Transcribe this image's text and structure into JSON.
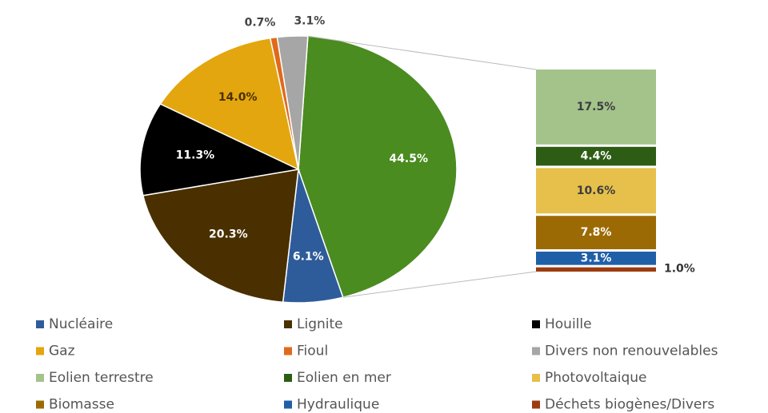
{
  "chart_data": {
    "type": "pie-of-bar",
    "categories": [
      "Nucléaire",
      "Lignite",
      "Houille",
      "Gaz",
      "Fioul",
      "Divers non renouvelables",
      null
    ],
    "values": [
      6.1,
      20.3,
      11.3,
      14.0,
      0.7,
      3.1,
      44.5
    ],
    "value_labels": [
      "6.1%",
      "20.3%",
      "11.3%",
      "14.0%",
      "0.7%",
      "3.1%",
      "44.5%"
    ],
    "colors": [
      "#2e5c9a",
      "#4a3000",
      "#000000",
      "#e3a60e",
      "#e06a1b",
      "#a6a6a6",
      "#4a8c1f"
    ],
    "bar_categories": [
      "Eolien terrestre",
      "Eolien en mer",
      "Photovoltaique",
      "Biomasse",
      "Hydraulique",
      "Déchets biogènes/Divers"
    ],
    "bar_values": [
      17.5,
      4.4,
      10.6,
      7.8,
      3.1,
      1.0
    ],
    "bar_value_labels": [
      "17.5%",
      "4.4%",
      "10.6%",
      "7.8%",
      "3.1%",
      "1.0%"
    ],
    "bar_colors": [
      "#a3c38b",
      "#2d5d14",
      "#e6c04b",
      "#9c6a04",
      "#1f5fa8",
      "#9c3b0f"
    ]
  }
}
